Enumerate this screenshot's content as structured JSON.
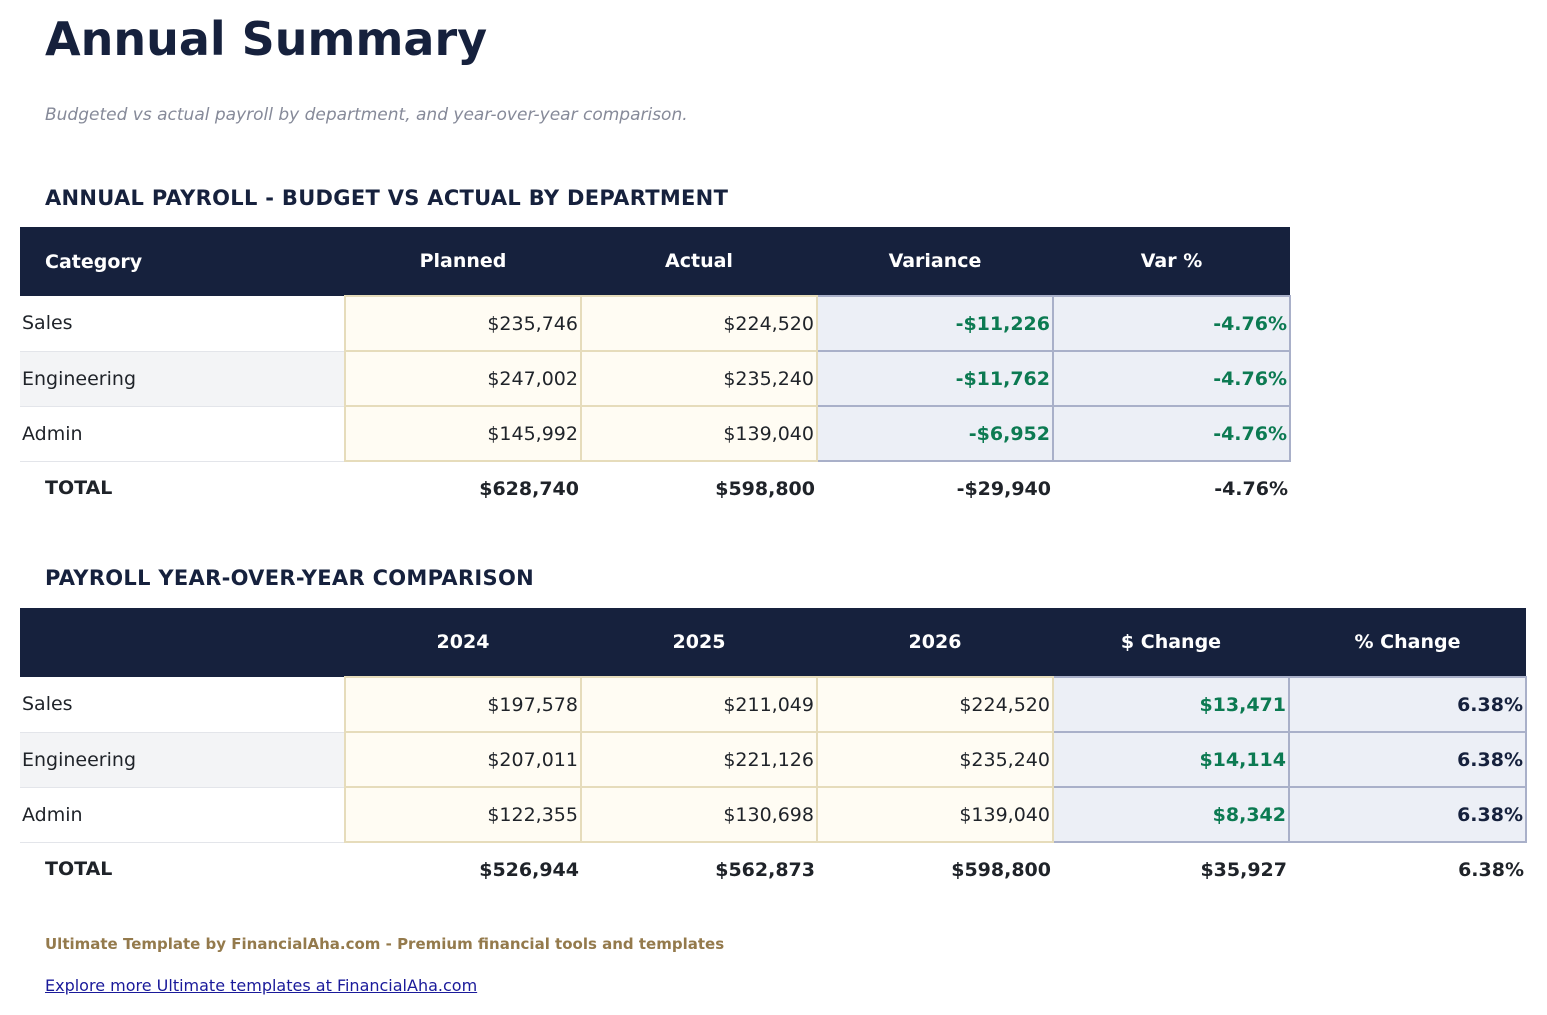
{
  "title": "Annual Summary",
  "subtitle": "Budgeted vs actual payroll by department, and year-over-year comparison.",
  "budget": {
    "heading": "ANNUAL PAYROLL - BUDGET VS ACTUAL BY DEPARTMENT",
    "columns": [
      "Category",
      "Planned",
      "Actual",
      "Variance",
      "Var %"
    ],
    "rows": [
      [
        "Sales",
        "$235,746",
        "$224,520",
        "-$11,226",
        "-4.76%"
      ],
      [
        "Engineering",
        "$247,002",
        "$235,240",
        "-$11,762",
        "-4.76%"
      ],
      [
        "Admin",
        "$145,992",
        "$139,040",
        "-$6,952",
        "-4.76%"
      ]
    ],
    "total": [
      "TOTAL",
      "$628,740",
      "$598,800",
      "-$29,940",
      "-4.76%"
    ]
  },
  "yoy": {
    "heading": "PAYROLL YEAR-OVER-YEAR COMPARISON",
    "columns": [
      "",
      "2024",
      "2025",
      "2026",
      "$ Change",
      "% Change"
    ],
    "rows": [
      [
        "Sales",
        "$197,578",
        "$211,049",
        "$224,520",
        "$13,471",
        "6.38%"
      ],
      [
        "Engineering",
        "$207,011",
        "$221,126",
        "$235,240",
        "$14,114",
        "6.38%"
      ],
      [
        "Admin",
        "$122,355",
        "$130,698",
        "$139,040",
        "$8,342",
        "6.38%"
      ]
    ],
    "total": [
      "TOTAL",
      "$526,944",
      "$562,873",
      "$598,800",
      "$35,927",
      "6.38%"
    ]
  },
  "footer": {
    "credit": "Ultimate Template by FinancialAha.com - Premium financial tools and templates",
    "link": "Explore more Ultimate templates at FinancialAha.com"
  },
  "colors": {
    "header_bg": "#16213d",
    "positive": "#0c7a52",
    "input_bg": "#fffcf3",
    "calc_bg": "#eceff6",
    "footer": "#947a4c"
  }
}
